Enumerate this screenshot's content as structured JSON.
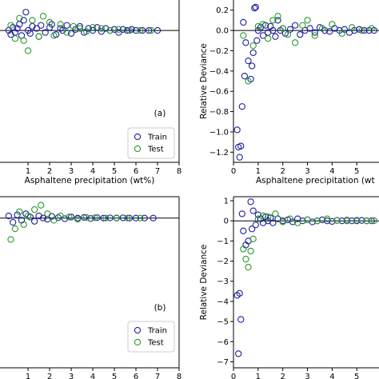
{
  "chart_data": [
    {
      "type": "scatter",
      "panel_label": "(a)",
      "xlabel": "Asphaltene precipitation (wt%)",
      "ylabel": "",
      "xlim": [
        -0.3,
        8
      ],
      "ylim": [
        -1.3,
        0.3
      ],
      "xticks": [
        "1",
        "2",
        "3",
        "4",
        "5",
        "6",
        "7",
        "8"
      ],
      "yticks": [],
      "legend": {
        "position": "lower-right",
        "entries": [
          "Train",
          "Test"
        ]
      },
      "series": [
        {
          "name": "Train",
          "color": "#1f1fa0",
          "x": [
            0.1,
            0.2,
            0.3,
            0.4,
            0.5,
            0.6,
            0.7,
            0.8,
            0.9,
            1.0,
            1.1,
            1.2,
            1.4,
            1.5,
            1.6,
            1.8,
            2.0,
            2.1,
            2.3,
            2.5,
            2.6,
            2.8,
            3.0,
            3.2,
            3.4,
            3.6,
            3.8,
            4.0,
            4.2,
            4.4,
            4.6,
            4.8,
            5.0,
            5.2,
            5.4,
            5.6,
            5.8,
            6.0,
            6.3,
            6.6,
            7.0
          ],
          "y": [
            0.0,
            -0.04,
            0.03,
            -0.02,
            0.02,
            0.06,
            -0.05,
            0.1,
            0.18,
            0.0,
            -0.03,
            0.04,
            0.02,
            -0.06,
            0.05,
            -0.02,
            0.03,
            0.06,
            -0.04,
            0.02,
            0.0,
            0.05,
            -0.03,
            0.01,
            0.04,
            -0.02,
            0.02,
            0.0,
            0.03,
            -0.01,
            0.02,
            0.0,
            0.01,
            -0.02,
            0.01,
            0.0,
            0.01,
            0.0,
            0.0,
            0.0,
            0.0
          ]
        },
        {
          "name": "Test",
          "color": "#2a9a2a",
          "x": [
            0.2,
            0.4,
            0.6,
            0.8,
            1.0,
            1.2,
            1.5,
            1.7,
            2.0,
            2.2,
            2.5,
            2.8,
            3.1,
            3.4,
            3.7,
            4.0,
            4.4,
            4.8,
            5.2,
            5.7,
            6.2,
            6.7
          ],
          "y": [
            0.05,
            -0.08,
            0.12,
            -0.1,
            -0.2,
            0.1,
            -0.06,
            0.14,
            0.08,
            -0.05,
            0.06,
            -0.02,
            0.04,
            0.02,
            -0.01,
            0.03,
            0.02,
            0.0,
            0.01,
            0.0,
            0.0,
            0.0
          ]
        }
      ]
    },
    {
      "type": "scatter",
      "panel_label": "",
      "xlabel": "Asphaltene precipitation (wt",
      "ylabel": "Relative Deviance",
      "xlim": [
        0,
        5.9
      ],
      "ylim": [
        -1.3,
        0.3
      ],
      "xticks": [
        "0",
        "1",
        "2",
        "3",
        "4",
        "5"
      ],
      "yticks": [
        "0.2",
        "0.0",
        "−0.2",
        "−0.4",
        "−0.6",
        "−0.8",
        "−1.0",
        "−1.2"
      ],
      "series": [
        {
          "name": "Train",
          "color": "#1f1fa0",
          "x": [
            0.15,
            0.2,
            0.25,
            0.3,
            0.35,
            0.4,
            0.45,
            0.5,
            0.6,
            0.7,
            0.75,
            0.8,
            0.85,
            0.9,
            0.95,
            1.0,
            1.1,
            1.2,
            1.3,
            1.4,
            1.5,
            1.6,
            1.7,
            1.8,
            1.9,
            2.0,
            2.1,
            2.3,
            2.5,
            2.7,
            2.9,
            3.1,
            3.3,
            3.5,
            3.7,
            3.9,
            4.1,
            4.3,
            4.5,
            4.7,
            4.9,
            5.1,
            5.3,
            5.5,
            5.7
          ],
          "y": [
            -0.98,
            -1.15,
            -1.25,
            -1.14,
            -0.75,
            0.08,
            -0.45,
            -0.12,
            -0.3,
            -0.48,
            -0.35,
            -0.22,
            0.22,
            0.23,
            -0.1,
            0.0,
            0.03,
            -0.05,
            0.05,
            -0.02,
            0.04,
            0.0,
            -0.06,
            0.1,
            0.0,
            0.02,
            -0.03,
            0.01,
            0.05,
            -0.04,
            0.0,
            0.02,
            -0.02,
            0.03,
            0.0,
            -0.01,
            0.02,
            0.0,
            0.01,
            -0.02,
            0.0,
            0.01,
            0.0,
            0.0,
            0.0
          ]
        },
        {
          "name": "Test",
          "color": "#2a9a2a",
          "x": [
            0.4,
            0.6,
            0.8,
            1.0,
            1.2,
            1.4,
            1.6,
            1.8,
            2.0,
            2.2,
            2.5,
            2.8,
            3.0,
            3.3,
            3.6,
            4.0,
            4.4,
            4.8,
            5.2,
            5.6
          ],
          "y": [
            -0.05,
            -0.5,
            -0.15,
            0.04,
            0.06,
            -0.08,
            0.1,
            0.14,
            0.02,
            -0.04,
            -0.12,
            0.05,
            0.1,
            -0.05,
            0.02,
            0.06,
            -0.03,
            0.03,
            0.0,
            0.02
          ]
        }
      ]
    },
    {
      "type": "scatter",
      "panel_label": "(b)",
      "xlabel": "Asphaltene precipitation (wt%)",
      "ylabel": "",
      "xlim": [
        -0.3,
        8
      ],
      "ylim": [
        -7,
        1
      ],
      "xticks": [
        "1",
        "2",
        "3",
        "4",
        "5",
        "6",
        "7",
        "8"
      ],
      "yticks": [],
      "legend": {
        "position": "lower-right",
        "entries": [
          "Train",
          "Test"
        ]
      },
      "series": [
        {
          "name": "Train",
          "color": "#1f1fa0",
          "x": [
            0.1,
            0.3,
            0.5,
            0.7,
            0.9,
            1.1,
            1.3,
            1.5,
            1.7,
            1.9,
            2.1,
            2.4,
            2.7,
            3.0,
            3.3,
            3.6,
            3.9,
            4.2,
            4.5,
            4.8,
            5.1,
            5.4,
            5.7,
            6.0,
            6.4,
            6.8
          ],
          "y": [
            0.1,
            -0.2,
            0.15,
            -0.1,
            0.2,
            0.05,
            -0.15,
            0.1,
            0.0,
            -0.05,
            0.08,
            0.02,
            -0.03,
            0.05,
            0.0,
            0.03,
            -0.02,
            0.02,
            0.0,
            0.01,
            0.0,
            0.01,
            0.0,
            0.0,
            0.0,
            0.0
          ]
        },
        {
          "name": "Test",
          "color": "#2a9a2a",
          "x": [
            0.2,
            0.4,
            0.6,
            0.8,
            1.0,
            1.3,
            1.6,
            1.9,
            2.2,
            2.5,
            2.9,
            3.3,
            3.7,
            4.1,
            4.6,
            5.1,
            5.6,
            6.2
          ],
          "y": [
            -1.0,
            -0.5,
            0.3,
            -0.3,
            0.1,
            0.4,
            0.6,
            0.2,
            -0.1,
            0.1,
            0.05,
            -0.05,
            0.03,
            0.02,
            0.0,
            0.01,
            0.0,
            0.0
          ]
        }
      ]
    },
    {
      "type": "scatter",
      "panel_label": "",
      "xlabel": "Asphaltene precipitation (wt",
      "ylabel": "Relative Deviance",
      "xlim": [
        0,
        5.9
      ],
      "ylim": [
        -7.3,
        1.2
      ],
      "xticks": [
        "0",
        "1",
        "2",
        "3",
        "4",
        "5"
      ],
      "yticks": [
        "1",
        "0",
        "−1",
        "−2",
        "−3",
        "−4",
        "−5",
        "−6",
        "−7"
      ],
      "series": [
        {
          "name": "Train",
          "color": "#1f1fa0",
          "x": [
            0.15,
            0.2,
            0.25,
            0.3,
            0.35,
            0.4,
            0.5,
            0.6,
            0.7,
            0.75,
            0.8,
            0.9,
            1.0,
            1.1,
            1.2,
            1.3,
            1.4,
            1.5,
            1.6,
            1.8,
            2.0,
            2.2,
            2.4,
            2.6,
            2.8,
            3.0,
            3.2,
            3.4,
            3.6,
            3.8,
            4.0,
            4.2,
            4.4,
            4.6,
            4.8,
            5.0,
            5.2,
            5.4,
            5.6
          ],
          "y": [
            -3.7,
            -6.6,
            -3.6,
            -4.9,
            0.35,
            -0.5,
            -1.2,
            -1.0,
            0.95,
            -0.4,
            0.5,
            -0.2,
            0.3,
            0.1,
            -0.1,
            0.2,
            0.0,
            0.15,
            -0.1,
            0.1,
            0.0,
            0.05,
            -0.05,
            0.1,
            0.0,
            0.05,
            -0.05,
            0.0,
            0.05,
            0.0,
            -0.03,
            0.02,
            0.0,
            0.03,
            0.0,
            0.0,
            0.02,
            0.0,
            0.0
          ]
        },
        {
          "name": "Test",
          "color": "#2a9a2a",
          "x": [
            0.4,
            0.5,
            0.6,
            0.7,
            0.8,
            1.0,
            1.2,
            1.4,
            1.7,
            2.0,
            2.3,
            2.6,
            3.0,
            3.4,
            3.8,
            4.2,
            4.6,
            5.0,
            5.4,
            5.7
          ],
          "y": [
            -1.4,
            -1.9,
            -2.3,
            -1.5,
            -0.9,
            0.1,
            0.25,
            0.2,
            0.35,
            -0.05,
            0.1,
            -0.1,
            0.05,
            0.0,
            0.1,
            0.02,
            0.0,
            0.03,
            0.0,
            0.01
          ]
        }
      ]
    }
  ]
}
